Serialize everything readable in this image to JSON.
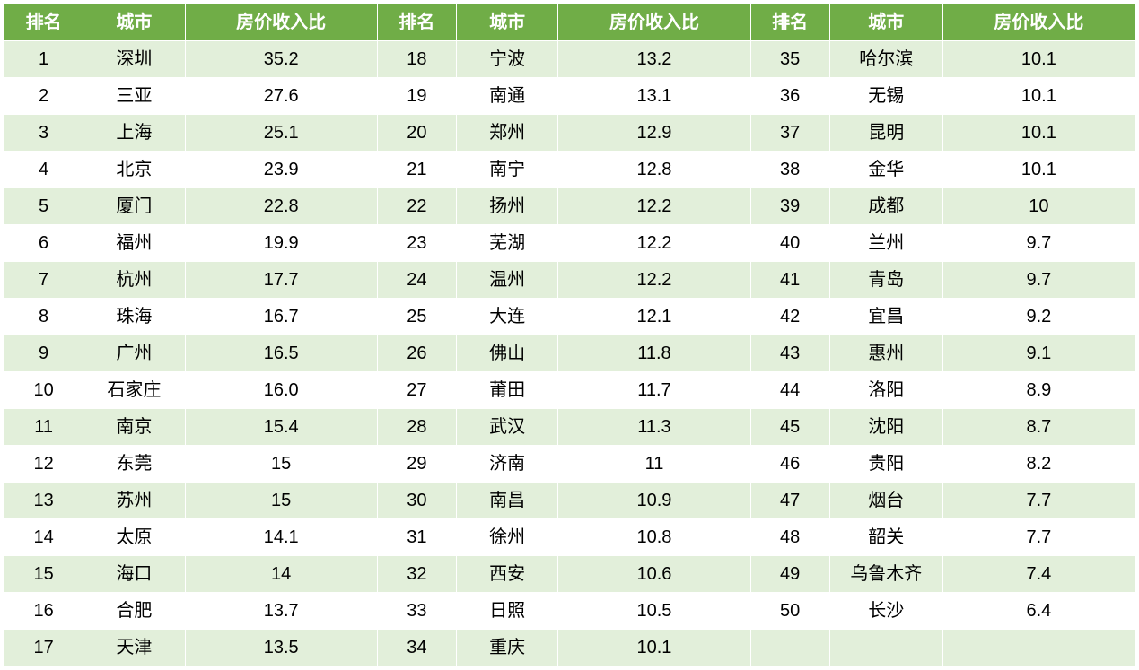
{
  "table": {
    "type": "table",
    "header_bg": "#70ad47",
    "header_color": "#ffffff",
    "row_odd_bg": "#e2efda",
    "row_even_bg": "#ffffff",
    "border_color": "#ffffff",
    "header_fontsize": 20,
    "cell_fontsize": 20,
    "columns": [
      "排名",
      "城市",
      "房价收入比",
      "排名",
      "城市",
      "房价收入比",
      "排名",
      "城市",
      "房价收入比"
    ],
    "col_widths": [
      "7%",
      "9%",
      "17%",
      "7%",
      "9%",
      "17%",
      "7%",
      "10%",
      "17%"
    ],
    "rows": [
      [
        "1",
        "深圳",
        "35.2",
        "18",
        "宁波",
        "13.2",
        "35",
        "哈尔滨",
        "10.1"
      ],
      [
        "2",
        "三亚",
        "27.6",
        "19",
        "南通",
        "13.1",
        "36",
        "无锡",
        "10.1"
      ],
      [
        "3",
        "上海",
        "25.1",
        "20",
        "郑州",
        "12.9",
        "37",
        "昆明",
        "10.1"
      ],
      [
        "4",
        "北京",
        "23.9",
        "21",
        "南宁",
        "12.8",
        "38",
        "金华",
        "10.1"
      ],
      [
        "5",
        "厦门",
        "22.8",
        "22",
        "扬州",
        "12.2",
        "39",
        "成都",
        "10"
      ],
      [
        "6",
        "福州",
        "19.9",
        "23",
        "芜湖",
        "12.2",
        "40",
        "兰州",
        "9.7"
      ],
      [
        "7",
        "杭州",
        "17.7",
        "24",
        "温州",
        "12.2",
        "41",
        "青岛",
        "9.7"
      ],
      [
        "8",
        "珠海",
        "16.7",
        "25",
        "大连",
        "12.1",
        "42",
        "宜昌",
        "9.2"
      ],
      [
        "9",
        "广州",
        "16.5",
        "26",
        "佛山",
        "11.8",
        "43",
        "惠州",
        "9.1"
      ],
      [
        "10",
        "石家庄",
        "16.0",
        "27",
        "莆田",
        "11.7",
        "44",
        "洛阳",
        "8.9"
      ],
      [
        "11",
        "南京",
        "15.4",
        "28",
        "武汉",
        "11.3",
        "45",
        "沈阳",
        "8.7"
      ],
      [
        "12",
        "东莞",
        "15",
        "29",
        "济南",
        "11",
        "46",
        "贵阳",
        "8.2"
      ],
      [
        "13",
        "苏州",
        "15",
        "30",
        "南昌",
        "10.9",
        "47",
        "烟台",
        "7.7"
      ],
      [
        "14",
        "太原",
        "14.1",
        "31",
        "徐州",
        "10.8",
        "48",
        "韶关",
        "7.7"
      ],
      [
        "15",
        "海口",
        "14",
        "32",
        "西安",
        "10.6",
        "49",
        "乌鲁木齐",
        "7.4"
      ],
      [
        "16",
        "合肥",
        "13.7",
        "33",
        "日照",
        "10.5",
        "50",
        "长沙",
        "6.4"
      ],
      [
        "17",
        "天津",
        "13.5",
        "34",
        "重庆",
        "10.1",
        "",
        "",
        ""
      ]
    ]
  }
}
